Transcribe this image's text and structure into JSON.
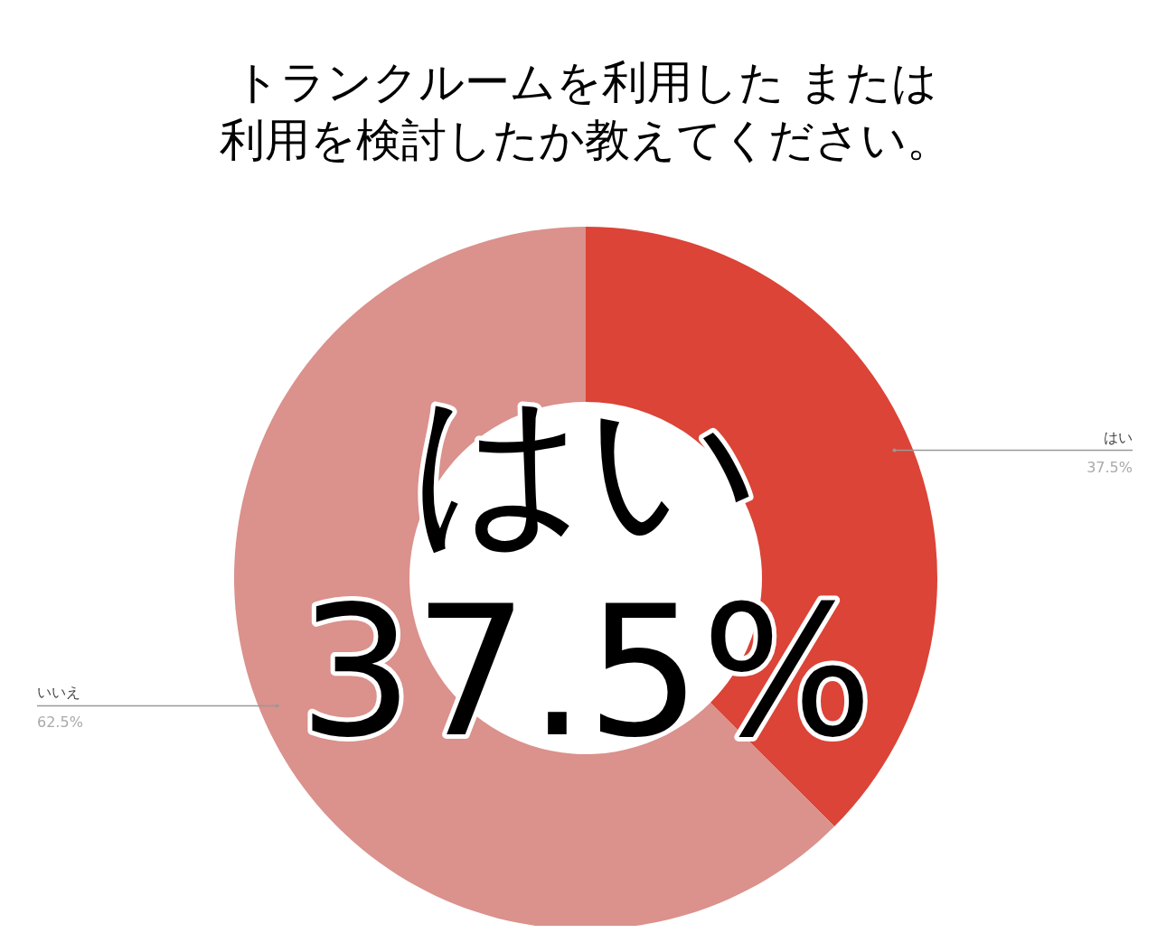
{
  "chart_data": {
    "type": "donut",
    "title": "トランクルームを利用した または利用を検討したか教えてください。",
    "categories": [
      "はい",
      "いいえ"
    ],
    "values": [
      37.5,
      62.5
    ],
    "colors": [
      "#db4437",
      "#db918c"
    ],
    "value_labels": [
      "37.5%",
      "62.5%"
    ],
    "annotations": [
      "はい",
      "37.5%"
    ],
    "legend": false
  }
}
